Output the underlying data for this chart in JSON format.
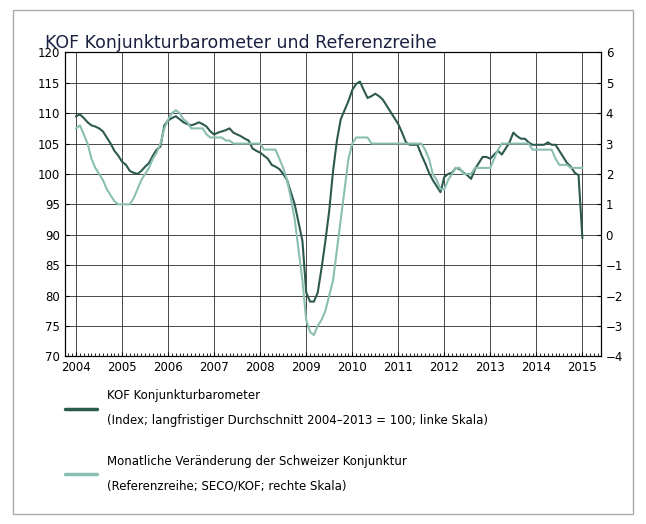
{
  "title": "KOF Konjunkturbarometer und Referenzreihe",
  "title_fontsize": 12.5,
  "dark_color": "#2d5a4e",
  "light_color": "#8bbfb2",
  "left_ylim": [
    70,
    120
  ],
  "right_ylim": [
    -4,
    6
  ],
  "left_yticks": [
    70,
    75,
    80,
    85,
    90,
    95,
    100,
    105,
    110,
    115,
    120
  ],
  "right_yticks": [
    -4,
    -3,
    -2,
    -1,
    0,
    1,
    2,
    3,
    4,
    5,
    6
  ],
  "xticks": [
    2004,
    2005,
    2006,
    2007,
    2008,
    2009,
    2010,
    2011,
    2012,
    2013,
    2014,
    2015
  ],
  "legend1_line1": "KOF Konjunkturbarometer",
  "legend1_line2": "(Index; langfristiger Durchschnitt 2004–2013 = 100; linke Skala)",
  "legend2_line1": "Monatliche Veränderung der Schweizer Konjunktur",
  "legend2_line2": "(Referenzreihe; SECO/KOF; rechte Skala)",
  "kof_x": [
    2004.0,
    2004.083,
    2004.167,
    2004.25,
    2004.333,
    2004.417,
    2004.5,
    2004.583,
    2004.667,
    2004.75,
    2004.833,
    2004.917,
    2005.0,
    2005.083,
    2005.167,
    2005.25,
    2005.333,
    2005.417,
    2005.5,
    2005.583,
    2005.667,
    2005.75,
    2005.833,
    2005.917,
    2006.0,
    2006.083,
    2006.167,
    2006.25,
    2006.333,
    2006.417,
    2006.5,
    2006.583,
    2006.667,
    2006.75,
    2006.833,
    2006.917,
    2007.0,
    2007.083,
    2007.167,
    2007.25,
    2007.333,
    2007.417,
    2007.5,
    2007.583,
    2007.667,
    2007.75,
    2007.833,
    2007.917,
    2008.0,
    2008.083,
    2008.167,
    2008.25,
    2008.333,
    2008.417,
    2008.5,
    2008.583,
    2008.667,
    2008.75,
    2008.833,
    2008.917,
    2009.0,
    2009.083,
    2009.167,
    2009.25,
    2009.333,
    2009.417,
    2009.5,
    2009.583,
    2009.667,
    2009.75,
    2009.833,
    2009.917,
    2010.0,
    2010.083,
    2010.167,
    2010.25,
    2010.333,
    2010.417,
    2010.5,
    2010.583,
    2010.667,
    2010.75,
    2010.833,
    2010.917,
    2011.0,
    2011.083,
    2011.167,
    2011.25,
    2011.333,
    2011.417,
    2011.5,
    2011.583,
    2011.667,
    2011.75,
    2011.833,
    2011.917,
    2012.0,
    2012.083,
    2012.167,
    2012.25,
    2012.333,
    2012.417,
    2012.5,
    2012.583,
    2012.667,
    2012.75,
    2012.833,
    2012.917,
    2013.0,
    2013.083,
    2013.167,
    2013.25,
    2013.333,
    2013.417,
    2013.5,
    2013.583,
    2013.667,
    2013.75,
    2013.833,
    2013.917,
    2014.0,
    2014.083,
    2014.167,
    2014.25,
    2014.333,
    2014.417,
    2014.5,
    2014.583,
    2014.667,
    2014.75,
    2014.833,
    2014.917,
    2015.0
  ],
  "kof_y": [
    109.5,
    109.8,
    109.2,
    108.5,
    108.0,
    107.8,
    107.5,
    107.0,
    106.0,
    105.0,
    103.8,
    103.0,
    102.0,
    101.5,
    100.5,
    100.2,
    100.0,
    100.5,
    101.2,
    101.8,
    103.0,
    104.0,
    104.5,
    108.0,
    108.8,
    109.2,
    109.5,
    109.0,
    108.5,
    108.2,
    108.0,
    108.2,
    108.5,
    108.2,
    107.8,
    107.0,
    106.5,
    106.8,
    107.0,
    107.2,
    107.5,
    106.8,
    106.5,
    106.2,
    105.8,
    105.5,
    104.2,
    103.8,
    103.5,
    103.0,
    102.5,
    101.5,
    101.2,
    100.8,
    100.0,
    99.0,
    97.0,
    95.0,
    92.0,
    89.0,
    80.5,
    79.0,
    79.0,
    80.5,
    84.5,
    89.0,
    94.0,
    100.5,
    105.5,
    109.0,
    110.5,
    112.0,
    113.8,
    114.8,
    115.2,
    113.8,
    112.5,
    112.8,
    113.2,
    112.8,
    112.2,
    111.2,
    110.2,
    109.2,
    108.2,
    106.8,
    105.2,
    104.8,
    104.8,
    104.8,
    103.2,
    101.8,
    100.2,
    99.0,
    98.0,
    97.0,
    99.5,
    100.0,
    100.2,
    101.0,
    100.8,
    100.2,
    99.8,
    99.2,
    100.8,
    101.8,
    102.8,
    102.8,
    102.5,
    103.2,
    103.8,
    103.2,
    104.2,
    105.2,
    106.8,
    106.2,
    105.8,
    105.8,
    105.2,
    104.8,
    104.8,
    104.8,
    104.8,
    105.2,
    104.8,
    104.8,
    103.8,
    102.8,
    101.8,
    101.2,
    100.2,
    99.8,
    89.5
  ],
  "ref_y": [
    3.5,
    3.6,
    3.3,
    3.0,
    2.5,
    2.2,
    2.0,
    1.8,
    1.5,
    1.3,
    1.1,
    1.0,
    1.0,
    1.0,
    1.0,
    1.2,
    1.5,
    1.8,
    2.0,
    2.2,
    2.5,
    2.7,
    3.0,
    3.5,
    3.8,
    4.0,
    4.1,
    4.0,
    3.8,
    3.7,
    3.5,
    3.5,
    3.5,
    3.5,
    3.3,
    3.2,
    3.2,
    3.2,
    3.2,
    3.1,
    3.1,
    3.0,
    3.0,
    3.0,
    3.0,
    3.0,
    3.0,
    3.0,
    3.0,
    2.8,
    2.8,
    2.8,
    2.8,
    2.5,
    2.2,
    1.8,
    1.2,
    0.5,
    -0.5,
    -1.5,
    -2.8,
    -3.2,
    -3.3,
    -3.0,
    -2.8,
    -2.5,
    -2.0,
    -1.5,
    -0.5,
    0.5,
    1.5,
    2.5,
    3.0,
    3.2,
    3.2,
    3.2,
    3.2,
    3.0,
    3.0,
    3.0,
    3.0,
    3.0,
    3.0,
    3.0,
    3.0,
    3.0,
    3.0,
    3.0,
    3.0,
    3.0,
    3.0,
    2.8,
    2.5,
    2.0,
    1.8,
    1.5,
    1.5,
    1.8,
    2.0,
    2.2,
    2.2,
    2.0,
    2.0,
    2.0,
    2.2,
    2.2,
    2.2,
    2.2,
    2.2,
    2.5,
    2.8,
    3.0,
    3.0,
    3.0,
    3.0,
    3.0,
    3.0,
    3.0,
    3.0,
    2.8,
    2.8,
    2.8,
    2.8,
    2.8,
    2.8,
    2.5,
    2.3,
    2.3,
    2.3,
    2.2,
    2.2,
    2.2,
    2.2
  ]
}
